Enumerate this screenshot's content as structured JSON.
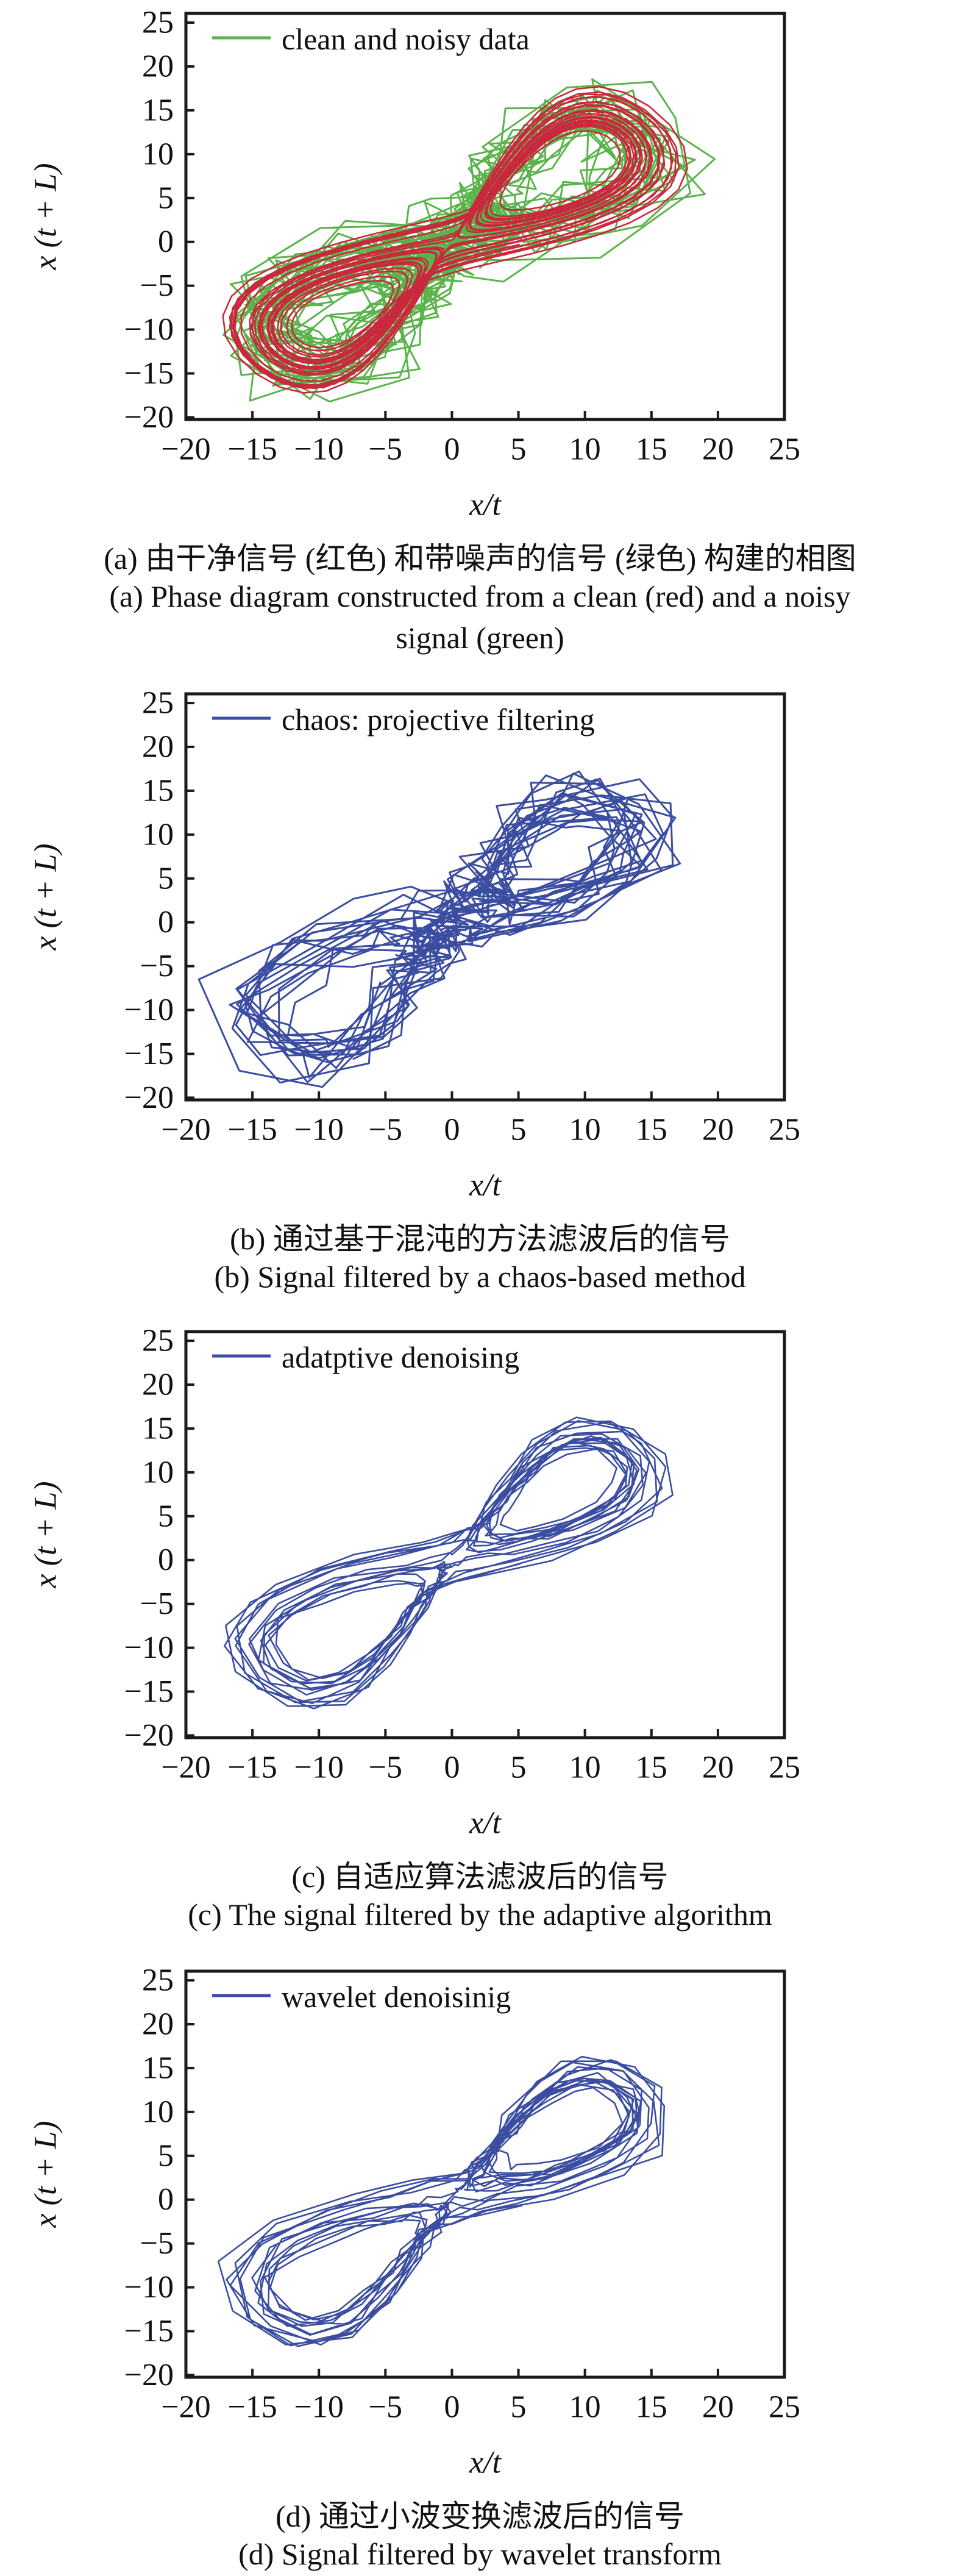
{
  "colors": {
    "background": "#ffffff",
    "axis": "#1a1a1a",
    "text": "#111111",
    "green": "#5bb44b",
    "red": "#c8293c",
    "blue": "#3b4da0"
  },
  "chart_data": {
    "type": "line",
    "figure_kind": "phase diagrams (delay embedding x(t) vs x(t+L)) of a chaotic Lorenz-type signal",
    "generator": {
      "system": "lorenz",
      "sigma": 10,
      "rho": 28,
      "beta": 2.66667,
      "dt": 0.01,
      "skip": 2000,
      "delay_steps": 10
    },
    "shared_axes": {
      "xlabel": "x/t",
      "ylabel": "x (t + L)",
      "xlim": [
        -20,
        25
      ],
      "ylim": [
        -20,
        25
      ],
      "xticks": [
        -20,
        -15,
        -10,
        -5,
        0,
        5,
        10,
        15,
        20,
        25
      ],
      "yticks": [
        -20,
        -15,
        -10,
        -5,
        0,
        5,
        10,
        15,
        20,
        25
      ],
      "grid": false,
      "legend_position": "top-left"
    },
    "panels": [
      {
        "id": "a",
        "legend_label": "clean and noisy data",
        "legend_color": "#5bb44b",
        "series": [
          {
            "name": "noisy signal",
            "color": "#5bb44b",
            "steps": 4200,
            "stride": 6,
            "noise_amplitude": 3.0,
            "stroke_width": 3,
            "seed": 7
          },
          {
            "name": "clean signal",
            "color": "#c8293c",
            "steps": 4200,
            "stride": 2,
            "noise_amplitude": 0,
            "stroke_width": 2.6,
            "seed": 1
          }
        ],
        "captions": {
          "zh": "(a) 由干净信号 (红色) 和带噪声的信号 (绿色) 构建的相图",
          "en": [
            "(a) Phase diagram constructed from a clean (red) and a noisy",
            "signal (green)"
          ]
        }
      },
      {
        "id": "b",
        "legend_label": "chaos: projective filtering",
        "legend_color": "#3b4da0",
        "series": [
          {
            "name": "chaos projective filtered signal",
            "color": "#3b4da0",
            "steps": 2800,
            "stride": 6,
            "noise_amplitude": 2.2,
            "stroke_width": 3,
            "seed": 11
          }
        ],
        "captions": {
          "zh": "(b) 通过基于混沌的方法滤波后的信号",
          "en": [
            "(b) Signal filtered by a chaos-based method"
          ]
        }
      },
      {
        "id": "c",
        "legend_label": "adatptive denoising",
        "legend_color": "#3b4da0",
        "series": [
          {
            "name": "adaptive algorithm filtered signal",
            "color": "#3b4da0",
            "steps": 2200,
            "stride": 5,
            "noise_amplitude": 0.45,
            "stroke_width": 2.6,
            "seed": 13
          }
        ],
        "captions": {
          "zh": "(c) 自适应算法滤波后的信号",
          "en": [
            "(c) The signal filtered by the adaptive algorithm"
          ]
        }
      },
      {
        "id": "d",
        "legend_label": "wavelet denoisinig",
        "legend_color": "#3b4da0",
        "series": [
          {
            "name": "wavelet transform filtered signal",
            "color": "#3b4da0",
            "steps": 2200,
            "stride": 5,
            "noise_amplitude": 0.6,
            "stroke_width": 2.6,
            "seed": 17
          }
        ],
        "captions": {
          "zh": "(d) 通过小波变换滤波后的信号",
          "en": [
            "(d) Signal filtered by wavelet transform"
          ]
        }
      }
    ]
  }
}
